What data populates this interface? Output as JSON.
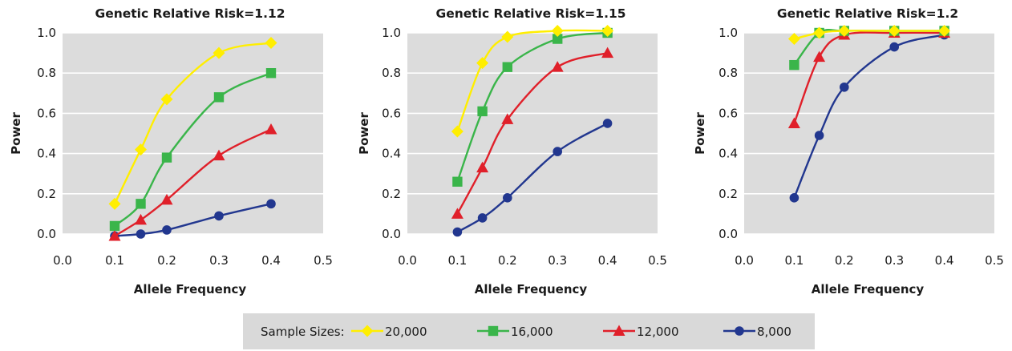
{
  "chart_data": [
    {
      "type": "line",
      "title": "Genetic Relative Risk=1.12",
      "xlabel": "Allele Frequency",
      "ylabel": "Power",
      "xlim": [
        0.0,
        0.5
      ],
      "ylim": [
        0.0,
        1.0
      ],
      "xticks": [
        "0.0",
        "0.1",
        "0.2",
        "0.3",
        "0.4",
        "0.5"
      ],
      "yticks": [
        "0.0",
        "0.2",
        "0.4",
        "0.6",
        "0.8",
        "1.0"
      ],
      "grid": true,
      "x": [
        0.1,
        0.15,
        0.2,
        0.3,
        0.4
      ],
      "series": [
        {
          "name": "20,000",
          "values": [
            0.15,
            0.42,
            0.67,
            0.9,
            0.95
          ]
        },
        {
          "name": "16,000",
          "values": [
            0.04,
            0.15,
            0.38,
            0.68,
            0.8
          ]
        },
        {
          "name": "12,000",
          "values": [
            -0.01,
            0.07,
            0.17,
            0.39,
            0.52
          ]
        },
        {
          "name": "8,000",
          "values": [
            -0.01,
            0.0,
            0.02,
            0.09,
            0.15
          ]
        }
      ]
    },
    {
      "type": "line",
      "title": "Genetic Relative Risk=1.15",
      "xlabel": "Allele Frequency",
      "ylabel": "Power",
      "xlim": [
        0.0,
        0.5
      ],
      "ylim": [
        0.0,
        1.0
      ],
      "xticks": [
        "0.0",
        "0.1",
        "0.2",
        "0.3",
        "0.4",
        "0.5"
      ],
      "yticks": [
        "0.0",
        "0.2",
        "0.4",
        "0.6",
        "0.8",
        "1.0"
      ],
      "grid": true,
      "x": [
        0.1,
        0.15,
        0.2,
        0.3,
        0.4
      ],
      "series": [
        {
          "name": "20,000",
          "values": [
            0.51,
            0.85,
            0.98,
            1.01,
            1.01
          ]
        },
        {
          "name": "16,000",
          "values": [
            0.26,
            0.61,
            0.83,
            0.97,
            1.0
          ]
        },
        {
          "name": "12,000",
          "values": [
            0.1,
            0.33,
            0.57,
            0.83,
            0.9
          ]
        },
        {
          "name": "8,000",
          "values": [
            0.01,
            0.08,
            0.18,
            0.41,
            0.55
          ]
        }
      ]
    },
    {
      "type": "line",
      "title": "Genetic Relative Risk=1.2",
      "xlabel": "Allele Frequency",
      "ylabel": "Power",
      "xlim": [
        0.0,
        0.5
      ],
      "ylim": [
        0.0,
        1.0
      ],
      "xticks": [
        "0.0",
        "0.1",
        "0.2",
        "0.3",
        "0.4",
        "0.5"
      ],
      "yticks": [
        "0.0",
        "0.2",
        "0.4",
        "0.6",
        "0.8",
        "1.0"
      ],
      "grid": true,
      "x": [
        0.1,
        0.15,
        0.2,
        0.3,
        0.4
      ],
      "series": [
        {
          "name": "20,000",
          "values": [
            0.97,
            1.0,
            1.01,
            1.01,
            1.01
          ]
        },
        {
          "name": "16,000",
          "values": [
            0.84,
            1.0,
            1.01,
            1.01,
            1.01
          ]
        },
        {
          "name": "12,000",
          "values": [
            0.55,
            0.88,
            0.99,
            1.0,
            1.0
          ]
        },
        {
          "name": "8,000",
          "values": [
            0.18,
            0.49,
            0.73,
            0.93,
            0.99
          ]
        }
      ]
    }
  ],
  "legend": {
    "title": "Sample Sizes:",
    "placement": "bottom-center",
    "items": [
      {
        "label": "20,000",
        "color": "#ffee00",
        "marker": "diamond"
      },
      {
        "label": "16,000",
        "color": "#3ab54a",
        "marker": "square"
      },
      {
        "label": "12,000",
        "color": "#e0202a",
        "marker": "triangle"
      },
      {
        "label": "8,000",
        "color": "#22378f",
        "marker": "circle"
      }
    ]
  },
  "colors": {
    "plot_background": "#dcdcdc",
    "gridline": "#ffffff",
    "legend_background": "#d9d9d9"
  }
}
